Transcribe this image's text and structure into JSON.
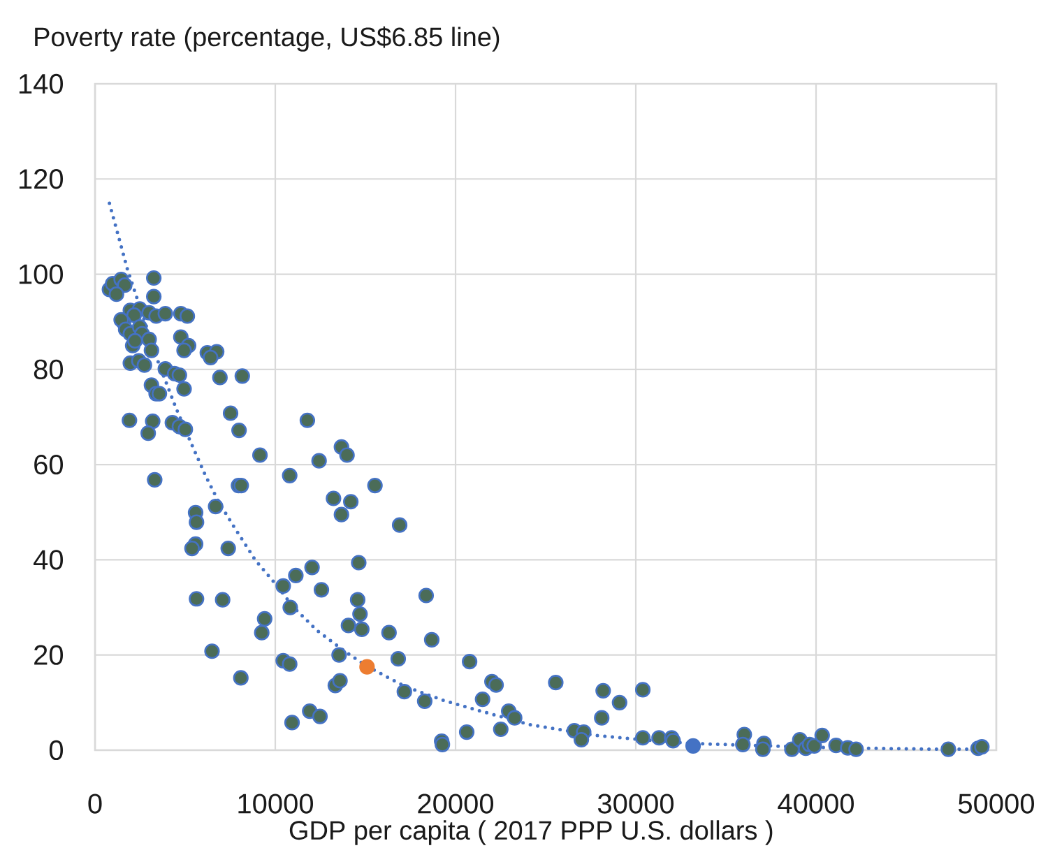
{
  "chart_data": {
    "type": "scatter",
    "xlabel": "GDP per capita ( 2017 PPP U.S. dollars )",
    "ylabel": "Poverty rate (percentage, US$6.85 line)",
    "xlim": [
      0,
      50000
    ],
    "ylim": [
      0,
      140
    ],
    "xticks": [
      0,
      10000,
      20000,
      30000,
      40000,
      50000
    ],
    "yticks": [
      0,
      20,
      40,
      60,
      80,
      100,
      120,
      140
    ],
    "grid": true,
    "marker": "circle",
    "series": [
      {
        "color": "#4b6c58",
        "x": [
          3260,
          3260,
          800,
          980,
          1450,
          1650,
          1190,
          1960,
          2480,
          2170,
          1580,
          1450,
          1700,
          1960,
          2480,
          2610,
          2090,
          2220,
          3000,
          3130,
          1960,
          2430,
          2740,
          3000,
          3390,
          3900,
          4760,
          5120,
          4760,
          5190,
          4940,
          6230,
          6750,
          6410,
          3900,
          4420,
          4680,
          4940,
          6930,
          8170,
          3130,
          3390,
          3570,
          1910,
          3200,
          2950,
          4290,
          4680,
          5010,
          7520,
          7990,
          9150,
          11780,
          10800,
          12430,
          13670,
          13980,
          13230,
          14190,
          13670,
          3310,
          5580,
          5630,
          6690,
          7960,
          8110,
          5580,
          5380,
          7390,
          11140,
          10440,
          12040,
          12560,
          14630,
          5630,
          7080,
          10830,
          9410,
          9250,
          6490,
          10440,
          10800,
          8090,
          13540,
          13330,
          13590,
          11910,
          12480,
          10930,
          14570,
          14700,
          14060,
          14800,
          15530,
          16900,
          18370,
          16310,
          18680,
          16820,
          20780,
          17160,
          18290,
          19230,
          19270,
          20620,
          21500,
          22020,
          22250,
          22950,
          23280,
          22510,
          25560,
          26590,
          27110,
          26980,
          28190,
          29100,
          28110,
          30390,
          30390,
          31290,
          31990,
          32070,
          36020,
          35940,
          37110,
          37050,
          38660,
          39100,
          39430,
          39640,
          39900,
          40340,
          41110,
          41760,
          42220,
          47340,
          48990,
          49200
        ],
        "values": [
          99.2,
          95.3,
          96.8,
          98.0,
          98.9,
          97.7,
          95.8,
          92.4,
          92.7,
          91.4,
          89.9,
          90.4,
          88.4,
          87.5,
          88.9,
          87.5,
          85.0,
          86.0,
          86.3,
          84.0,
          81.3,
          81.8,
          80.9,
          91.9,
          91.2,
          91.7,
          91.7,
          91.2,
          86.8,
          85.0,
          84.0,
          83.5,
          83.7,
          82.5,
          80.1,
          79.1,
          78.8,
          75.9,
          78.3,
          78.6,
          76.7,
          74.9,
          74.9,
          69.3,
          69.1,
          66.6,
          68.8,
          68.0,
          67.4,
          70.8,
          67.2,
          62.0,
          69.3,
          57.7,
          60.8,
          63.7,
          62.0,
          52.9,
          52.2,
          49.5,
          56.8,
          49.9,
          47.9,
          51.2,
          55.6,
          55.6,
          43.3,
          42.4,
          42.4,
          36.7,
          34.5,
          38.4,
          33.7,
          39.4,
          31.8,
          31.6,
          30.0,
          27.6,
          24.7,
          20.8,
          18.8,
          18.1,
          15.2,
          20.0,
          13.6,
          14.6,
          8.2,
          7.1,
          5.8,
          31.6,
          28.6,
          26.2,
          25.4,
          55.6,
          47.3,
          32.5,
          24.7,
          23.2,
          19.2,
          18.6,
          12.3,
          10.3,
          1.9,
          1.2,
          3.8,
          10.7,
          14.4,
          13.7,
          8.2,
          6.8,
          4.4,
          14.2,
          4.1,
          3.8,
          2.2,
          12.5,
          10.0,
          6.8,
          12.7,
          2.6,
          2.6,
          2.6,
          2.0,
          3.3,
          1.2,
          1.4,
          0.2,
          0.2,
          2.2,
          0.4,
          1.2,
          0.9,
          3.1,
          1.0,
          0.5,
          0.2,
          0.2,
          0.4,
          0.7
        ]
      },
      {
        "color": "#ed7d31",
        "x": [
          15090
        ],
        "values": [
          17.5
        ]
      },
      {
        "color": "#4472c4",
        "x": [
          33180
        ],
        "values": [
          0.9
        ]
      },
      {
        "type": "line",
        "color": "#4472c4",
        "line_style": "dotted",
        "marker": "none",
        "x": [
          800,
          1800,
          3500,
          4500,
          5400,
          6150,
          6870,
          7700,
          8900,
          10000,
          11000,
          12300,
          13850,
          15100,
          17200,
          19300,
          21600,
          24200,
          27800,
          30100,
          33200,
          36600,
          41000,
          46900,
          49200
        ],
        "values": [
          114.9,
          101.0,
          81.6,
          71.8,
          63.9,
          57.5,
          52.1,
          47.0,
          39.9,
          35.0,
          30.1,
          25.2,
          20.8,
          17.6,
          13.4,
          10.5,
          8.0,
          5.3,
          3.1,
          2.3,
          1.4,
          1.0,
          0.5,
          0.2,
          0.2
        ]
      }
    ]
  }
}
